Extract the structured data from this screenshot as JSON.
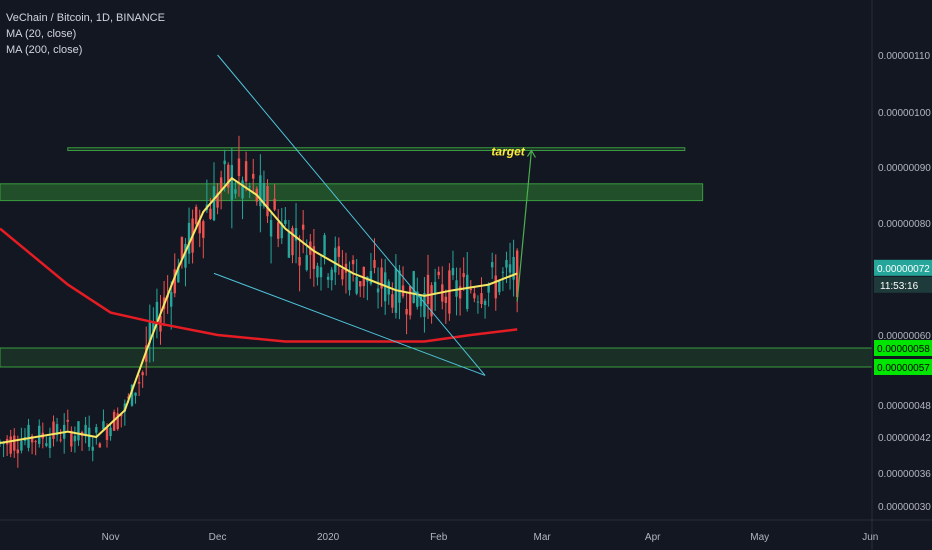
{
  "legend": {
    "symbol": "VeChain / Bitcoin, 1D, BINANCE",
    "ma20": "MA (20, close)",
    "ma200": "MA (200, close)"
  },
  "annotation": {
    "target_label": "target"
  },
  "timer": "11:53:16",
  "colors": {
    "background": "#131722",
    "up": "#26a69a",
    "down": "#ef5350",
    "ma20": "#f5e663",
    "ma200": "#e51c23",
    "trendline": "#4fc3d9",
    "zone": "#2e7d32",
    "target_arrow": "#4caf50",
    "target_text": "#ffeb3b",
    "level_tag": "#00e600",
    "last_tag": "#26a69a"
  },
  "chart_data": {
    "type": "line",
    "title": "VeChain / Bitcoin, 1D, BINANCE",
    "xlabel": "",
    "ylabel": "",
    "ylim": [
      2.7e-07,
      1.21e-06
    ],
    "x_ticks": [
      "Nov",
      "Dec",
      "2020",
      "Feb",
      "Mar",
      "Apr",
      "May",
      "Jun"
    ],
    "y_ticks": [
      "0.00000030",
      "0.00000036",
      "0.00000042",
      "0.00000048",
      "0.00000060",
      "0.00000080",
      "0.00000090",
      "0.00000100",
      "0.00000110"
    ],
    "grid": false,
    "series": [
      {
        "name": "MA (20, close)",
        "x": [
          "2019-10-01",
          "2019-10-20",
          "2019-10-28",
          "2019-11-05",
          "2019-11-12",
          "2019-11-20",
          "2019-11-27",
          "2019-12-05",
          "2019-12-12",
          "2019-12-20",
          "2019-12-28",
          "2020-01-08",
          "2020-01-20",
          "2020-01-28",
          "2020-02-05",
          "2020-02-15",
          "2020-02-23"
        ],
        "values": [
          4.1e-07,
          4.3e-07,
          4.2e-07,
          4.7e-07,
          5.9e-07,
          7.2e-07,
          8.2e-07,
          8.8e-07,
          8.5e-07,
          7.9e-07,
          7.5e-07,
          7.1e-07,
          6.8e-07,
          6.7e-07,
          6.8e-07,
          6.9e-07,
          7.1e-07
        ]
      },
      {
        "name": "MA (200, close)",
        "x": [
          "2019-10-01",
          "2019-10-20",
          "2019-11-01",
          "2019-11-15",
          "2019-12-01",
          "2019-12-20",
          "2020-01-10",
          "2020-01-28",
          "2020-02-10",
          "2020-02-23"
        ],
        "values": [
          7.9e-07,
          6.9e-07,
          6.4e-07,
          6.2e-07,
          6e-07,
          5.9e-07,
          5.9e-07,
          5.9e-07,
          6e-07,
          6.1e-07
        ]
      }
    ],
    "zones": [
      {
        "low": 8.4e-07,
        "high": 8.7e-07,
        "from": "2019-10-01",
        "to": "2020-04-15"
      },
      {
        "low": 9.3e-07,
        "high": 9.35e-07,
        "from": "2019-10-20",
        "to": "2020-04-10"
      },
      {
        "low": 5.7e-07,
        "high": 5.8e-07,
        "from": "2019-10-01",
        "to": "2020-06-10"
      }
    ],
    "trendlines": [
      {
        "from": [
          "2019-12-01",
          1.1e-06
        ],
        "to": [
          "2020-02-14",
          5.5e-07
        ]
      },
      {
        "from": [
          "2019-11-30",
          7.1e-07
        ],
        "to": [
          "2020-02-14",
          5.5e-07
        ]
      }
    ],
    "target_arrow": {
      "from": [
        "2020-02-23",
        6.6e-07
      ],
      "to": [
        "2020-02-27",
        9.3e-07
      ]
    },
    "price_labels": [
      {
        "text": "0.00000072",
        "value": 7.2e-07,
        "kind": "last"
      },
      {
        "text": "0.00000058",
        "value": 5.8e-07,
        "kind": "level"
      },
      {
        "text": "0.00000057",
        "value": 5.7e-07,
        "kind": "level"
      }
    ]
  }
}
